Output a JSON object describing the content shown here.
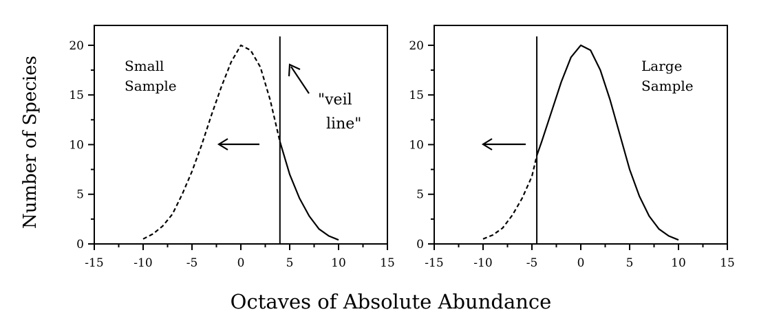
{
  "figure": {
    "xlabel": "Octaves of Absolute Abundance",
    "ylabel": "Number of Species"
  },
  "chart_data": [
    {
      "type": "line",
      "x_ticks": [
        -15,
        -10,
        -5,
        0,
        5,
        10,
        15
      ],
      "y_ticks": [
        0,
        5,
        10,
        15,
        20
      ],
      "xlim": [
        -15,
        15
      ],
      "ylim": [
        0,
        22
      ],
      "grid": false,
      "veil_line_x": 4,
      "series": [
        {
          "style": "dashed",
          "x": [
            -10,
            -9,
            -8,
            -7,
            -6,
            -5,
            -4,
            -3,
            -2,
            -1,
            0,
            1,
            2,
            3,
            4
          ],
          "y": [
            0.5,
            1.0,
            1.8,
            3.0,
            5.0,
            7.3,
            10.0,
            13.0,
            15.8,
            18.3,
            20.0,
            19.5,
            17.8,
            14.5,
            10.3
          ]
        },
        {
          "style": "solid",
          "x": [
            4,
            5,
            6,
            7,
            8,
            9,
            10
          ],
          "y": [
            10.3,
            7.0,
            4.6,
            2.8,
            1.5,
            0.8,
            0.4
          ]
        }
      ],
      "annotations": {
        "sample_line1": "Small",
        "sample_line2": "Sample",
        "veil_line1": "\"veil",
        "veil_line2": "line\""
      }
    },
    {
      "type": "line",
      "x_ticks": [
        -15,
        -10,
        -5,
        0,
        5,
        10,
        15
      ],
      "y_ticks": [
        0,
        5,
        10,
        15,
        20
      ],
      "xlim": [
        -15,
        15
      ],
      "ylim": [
        0,
        22
      ],
      "grid": false,
      "veil_line_x": -4.5,
      "series": [
        {
          "style": "dashed",
          "x": [
            -10,
            -9,
            -8,
            -7,
            -6,
            -5,
            -4.5
          ],
          "y": [
            0.5,
            0.9,
            1.6,
            2.9,
            4.6,
            6.8,
            8.9
          ]
        },
        {
          "style": "solid",
          "x": [
            -4.5,
            -4,
            -3,
            -2,
            -1,
            0,
            1,
            2,
            3,
            4,
            5,
            6,
            7,
            8,
            9,
            10
          ],
          "y": [
            8.9,
            10.3,
            13.3,
            16.3,
            18.8,
            20.0,
            19.5,
            17.5,
            14.5,
            11.0,
            7.5,
            4.8,
            2.8,
            1.5,
            0.8,
            0.4
          ]
        }
      ],
      "annotations": {
        "sample_line1": "Large",
        "sample_line2": "Sample"
      }
    }
  ]
}
